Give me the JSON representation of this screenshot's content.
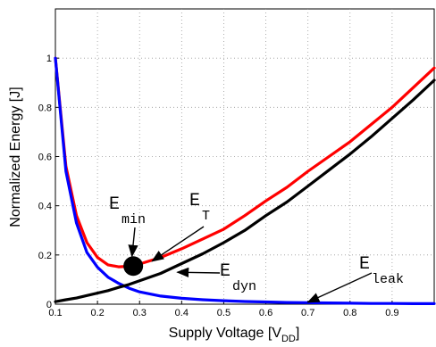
{
  "chart_data": {
    "type": "line",
    "xlabel": "Supply Voltage [V",
    "xlabel_sub": "DD",
    "xlabel_close": "]",
    "ylabel": "Normalized Energy [J]",
    "xlim": [
      0.1,
      1.0
    ],
    "ylim": [
      0,
      1.2
    ],
    "grid": true,
    "x_ticks": [
      "0.1",
      "0.2",
      "0.3",
      "0.4",
      "0.5",
      "0.6",
      "0.7",
      "0.8",
      "0.9"
    ],
    "y_ticks": [
      "0",
      "0.2",
      "0.4",
      "0.6",
      "0.8",
      "1"
    ],
    "x_tick_values": [
      0.1,
      0.2,
      0.3,
      0.4,
      0.5,
      0.6,
      0.7,
      0.8,
      0.9
    ],
    "y_tick_values": [
      0,
      0.2,
      0.4,
      0.6,
      0.8,
      1.0
    ],
    "x": [
      0.1,
      0.125,
      0.15,
      0.175,
      0.2,
      0.225,
      0.25,
      0.275,
      0.3,
      0.35,
      0.4,
      0.45,
      0.5,
      0.55,
      0.6,
      0.65,
      0.7,
      0.75,
      0.8,
      0.85,
      0.9,
      0.95,
      1.0
    ],
    "series": [
      {
        "key": "total",
        "color": "#ff0000",
        "values": [
          1.0,
          0.56,
          0.36,
          0.25,
          0.19,
          0.16,
          0.152,
          0.154,
          0.163,
          0.19,
          0.225,
          0.265,
          0.305,
          0.36,
          0.42,
          0.475,
          0.54,
          0.6,
          0.66,
          0.73,
          0.8,
          0.88,
          0.96
        ]
      },
      {
        "key": "leak",
        "color": "#0000ff",
        "values": [
          1.0,
          0.54,
          0.33,
          0.21,
          0.15,
          0.11,
          0.085,
          0.065,
          0.05,
          0.033,
          0.024,
          0.018,
          0.014,
          0.011,
          0.009,
          0.007,
          0.006,
          0.005,
          0.004,
          0.003,
          0.003,
          0.002,
          0.002
        ]
      },
      {
        "key": "dyn",
        "color": "#000000",
        "values": [
          0.01,
          0.018,
          0.025,
          0.035,
          0.045,
          0.055,
          0.068,
          0.08,
          0.095,
          0.125,
          0.165,
          0.205,
          0.25,
          0.3,
          0.36,
          0.415,
          0.48,
          0.545,
          0.61,
          0.68,
          0.755,
          0.83,
          0.91
        ]
      }
    ],
    "min_point": {
      "x": 0.285,
      "y": 0.155
    },
    "annotations": [
      {
        "key": "emin",
        "main": "E",
        "sub": "min",
        "arrow_to": {
          "x": 0.282,
          "y": 0.195
        }
      },
      {
        "key": "et",
        "main": "E",
        "sub": "T",
        "arrow_to": {
          "x": 0.33,
          "y": 0.175
        }
      },
      {
        "key": "edyn",
        "main": "E",
        "sub": "dyn",
        "arrow_to": {
          "x": 0.39,
          "y": 0.13
        }
      },
      {
        "key": "eleak",
        "main": "E",
        "sub": "leak",
        "arrow_to": {
          "x": 0.7,
          "y": 0.008
        }
      }
    ]
  }
}
